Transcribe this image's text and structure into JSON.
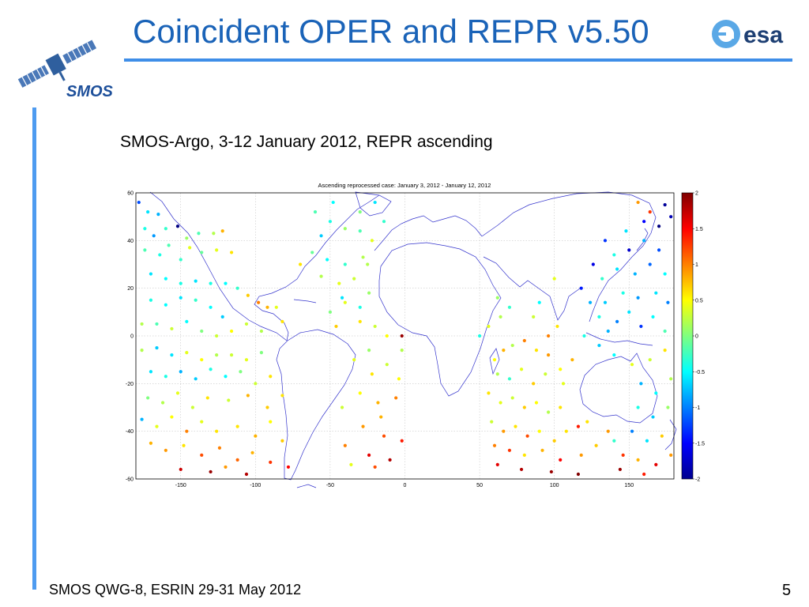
{
  "slide": {
    "title": "Coincident OPER and REPR v5.50",
    "subtitle": "SMOS-Argo, 3-12 January 2012, REPR ascending",
    "footer": "SMOS QWG-8, ESRIN 29-31 May 2012",
    "page_number": "5"
  },
  "logos": {
    "left": {
      "text": "SMOS",
      "icon": "satellite-icon"
    },
    "right": {
      "text": "esa",
      "icon": "esa-logo-icon"
    }
  },
  "colors": {
    "title": "#1a63b8",
    "rule": "#3f8ee8",
    "coastline": "#3333cc",
    "grid": "#bbbbbb"
  },
  "chart_data": {
    "type": "scatter",
    "title": "Ascending reprocessed case: January 3, 2012 - January 12, 2012",
    "xlabel": "",
    "ylabel": "",
    "xlim": [
      -180,
      180
    ],
    "ylim": [
      -60,
      60
    ],
    "x_ticks": [
      -150,
      -100,
      -50,
      0,
      50,
      100,
      150
    ],
    "y_ticks": [
      60,
      40,
      20,
      0,
      -20,
      -40,
      -60
    ],
    "grid": true,
    "colorbar": {
      "range": [
        -2,
        2
      ],
      "ticks": [
        2,
        1.5,
        1,
        0.5,
        0,
        -0.5,
        -1,
        -1.5,
        -2
      ],
      "colormap": "jet"
    },
    "points": [
      [
        -178,
        56,
        -1.2
      ],
      [
        -172,
        52,
        -0.6
      ],
      [
        -165,
        51,
        -0.8
      ],
      [
        -160,
        45,
        -0.3
      ],
      [
        -152,
        46,
        -2.0
      ],
      [
        -146,
        41,
        0.1
      ],
      [
        -138,
        43,
        -0.2
      ],
      [
        -128,
        43,
        0.2
      ],
      [
        -122,
        44,
        0.8
      ],
      [
        -116,
        35,
        0.6
      ],
      [
        -126,
        36,
        0.4
      ],
      [
        -136,
        35,
        -0.1
      ],
      [
        -150,
        32,
        -0.3
      ],
      [
        -164,
        34,
        -0.4
      ],
      [
        -174,
        36,
        -0.2
      ],
      [
        -170,
        26,
        -0.6
      ],
      [
        -160,
        24,
        -0.5
      ],
      [
        -150,
        22,
        -0.4
      ],
      [
        -140,
        23,
        -0.6
      ],
      [
        -130,
        22,
        -0.4
      ],
      [
        -120,
        22,
        -0.5
      ],
      [
        -112,
        20,
        -0.3
      ],
      [
        -105,
        17,
        0.7
      ],
      [
        -98,
        14,
        1.0
      ],
      [
        -92,
        12,
        0.8
      ],
      [
        -82,
        6,
        0.6
      ],
      [
        -86,
        12,
        0.4
      ],
      [
        -170,
        15,
        -0.4
      ],
      [
        -160,
        13,
        -0.5
      ],
      [
        -150,
        16,
        -0.6
      ],
      [
        -140,
        15,
        -0.3
      ],
      [
        -130,
        12,
        -0.5
      ],
      [
        -122,
        8,
        -0.7
      ],
      [
        -176,
        5,
        0.2
      ],
      [
        -166,
        5,
        -0.2
      ],
      [
        -156,
        3,
        0.3
      ],
      [
        -146,
        6,
        -0.5
      ],
      [
        -136,
        2,
        0.0
      ],
      [
        -126,
        0,
        0.3
      ],
      [
        -116,
        2,
        0.5
      ],
      [
        -106,
        5,
        0.3
      ],
      [
        -96,
        2,
        0.2
      ],
      [
        -176,
        -6,
        0.2
      ],
      [
        -166,
        -5,
        -0.7
      ],
      [
        -156,
        -8,
        -0.6
      ],
      [
        -146,
        -7,
        0.4
      ],
      [
        -136,
        -10,
        0.5
      ],
      [
        -126,
        -8,
        0.2
      ],
      [
        -116,
        -8,
        0.3
      ],
      [
        -106,
        -10,
        0.4
      ],
      [
        -96,
        -7,
        0.0
      ],
      [
        -170,
        -15,
        -0.6
      ],
      [
        -160,
        -17,
        -0.4
      ],
      [
        -150,
        -15,
        -0.8
      ],
      [
        -140,
        -18,
        -0.7
      ],
      [
        -130,
        -14,
        -0.4
      ],
      [
        -120,
        -17,
        -0.5
      ],
      [
        -110,
        -15,
        0.0
      ],
      [
        -100,
        -20,
        0.3
      ],
      [
        -90,
        -17,
        0.6
      ],
      [
        -172,
        -26,
        0.0
      ],
      [
        -162,
        -28,
        0.2
      ],
      [
        -152,
        -24,
        0.4
      ],
      [
        -142,
        -30,
        0.3
      ],
      [
        -132,
        -26,
        0.6
      ],
      [
        -118,
        -27,
        0.3
      ],
      [
        -105,
        -25,
        0.8
      ],
      [
        -92,
        -30,
        0.7
      ],
      [
        -82,
        -25,
        0.6
      ],
      [
        -176,
        -35,
        -0.8
      ],
      [
        -166,
        -38,
        0.4
      ],
      [
        -156,
        -34,
        0.5
      ],
      [
        -146,
        -40,
        1.0
      ],
      [
        -136,
        -36,
        0.4
      ],
      [
        -126,
        -40,
        0.6
      ],
      [
        -112,
        -38,
        0.6
      ],
      [
        -100,
        -42,
        0.8
      ],
      [
        -90,
        -36,
        0.5
      ],
      [
        -82,
        -44,
        0.7
      ],
      [
        -170,
        -45,
        0.8
      ],
      [
        -160,
        -48,
        0.9
      ],
      [
        -148,
        -46,
        0.6
      ],
      [
        -136,
        -50,
        1.2
      ],
      [
        -124,
        -47,
        1.0
      ],
      [
        -112,
        -52,
        1.1
      ],
      [
        -102,
        -49,
        0.8
      ],
      [
        -90,
        -53,
        1.3
      ],
      [
        -78,
        -55,
        1.5
      ],
      [
        -150,
        -56,
        1.7
      ],
      [
        -130,
        -57,
        1.9
      ],
      [
        -106,
        -58,
        1.8
      ],
      [
        -120,
        -55,
        0.9
      ],
      [
        -174,
        45,
        -0.4
      ],
      [
        -168,
        42,
        -0.9
      ],
      [
        -158,
        38,
        -0.2
      ],
      [
        -144,
        37,
        0.4
      ],
      [
        -60,
        52,
        -0.2
      ],
      [
        -50,
        48,
        -0.4
      ],
      [
        -40,
        45,
        0.1
      ],
      [
        -30,
        44,
        -0.2
      ],
      [
        -22,
        40,
        0.4
      ],
      [
        -28,
        33,
        0.2
      ],
      [
        -40,
        30,
        -0.3
      ],
      [
        -52,
        32,
        -0.5
      ],
      [
        -62,
        35,
        -0.1
      ],
      [
        -70,
        30,
        0.6
      ],
      [
        -56,
        25,
        0.2
      ],
      [
        -44,
        22,
        0.4
      ],
      [
        -34,
        24,
        0.3
      ],
      [
        -24,
        18,
        0.1
      ],
      [
        -40,
        14,
        0.4
      ],
      [
        -50,
        10,
        0.0
      ],
      [
        -30,
        6,
        0.6
      ],
      [
        -20,
        4,
        0.3
      ],
      [
        -12,
        0,
        0.5
      ],
      [
        -24,
        -6,
        0.1
      ],
      [
        -34,
        -10,
        0.4
      ],
      [
        -22,
        -16,
        0.6
      ],
      [
        -12,
        -12,
        0.3
      ],
      [
        -2,
        -6,
        0.2
      ],
      [
        -30,
        -24,
        0.5
      ],
      [
        -18,
        -28,
        0.8
      ],
      [
        -6,
        -26,
        1.0
      ],
      [
        -42,
        -30,
        0.3
      ],
      [
        -28,
        -38,
        0.9
      ],
      [
        -14,
        -42,
        1.2
      ],
      [
        -2,
        -44,
        1.4
      ],
      [
        -40,
        -46,
        1.0
      ],
      [
        -24,
        -50,
        1.6
      ],
      [
        -10,
        -52,
        1.8
      ],
      [
        -36,
        -54,
        0.4
      ],
      [
        -20,
        -55,
        1.2
      ],
      [
        -48,
        56,
        -0.5
      ],
      [
        -30,
        52,
        0.0
      ],
      [
        -20,
        56,
        -0.6
      ],
      [
        -14,
        48,
        -0.3
      ],
      [
        -42,
        16,
        -0.6
      ],
      [
        -30,
        12,
        -0.4
      ],
      [
        -2,
        0,
        1.9
      ],
      [
        -56,
        42,
        -0.7
      ],
      [
        -25,
        30,
        0.2
      ],
      [
        -46,
        4,
        0.7
      ],
      [
        -16,
        -34,
        0.8
      ],
      [
        -4,
        -18,
        0.5
      ],
      [
        60,
        -10,
        0.5
      ],
      [
        66,
        -6,
        0.8
      ],
      [
        72,
        -4,
        0.2
      ],
      [
        80,
        -2,
        1.0
      ],
      [
        88,
        -6,
        0.6
      ],
      [
        96,
        -8,
        0.9
      ],
      [
        62,
        -16,
        0.2
      ],
      [
        70,
        -18,
        -0.3
      ],
      [
        78,
        -14,
        0.4
      ],
      [
        86,
        -20,
        0.7
      ],
      [
        94,
        -16,
        0.3
      ],
      [
        104,
        -14,
        0.5
      ],
      [
        56,
        -24,
        0.6
      ],
      [
        64,
        -28,
        0.4
      ],
      [
        72,
        -26,
        0.3
      ],
      [
        80,
        -30,
        0.7
      ],
      [
        88,
        -28,
        0.5
      ],
      [
        96,
        -32,
        0.2
      ],
      [
        104,
        -30,
        0.6
      ],
      [
        58,
        -36,
        0.3
      ],
      [
        66,
        -40,
        0.9
      ],
      [
        74,
        -38,
        0.6
      ],
      [
        82,
        -42,
        1.2
      ],
      [
        90,
        -40,
        0.5
      ],
      [
        100,
        -44,
        0.7
      ],
      [
        108,
        -40,
        0.6
      ],
      [
        116,
        -38,
        1.4
      ],
      [
        60,
        -46,
        1.0
      ],
      [
        70,
        -48,
        1.3
      ],
      [
        80,
        -50,
        0.6
      ],
      [
        92,
        -48,
        0.8
      ],
      [
        104,
        -52,
        1.5
      ],
      [
        118,
        -50,
        0.9
      ],
      [
        128,
        -46,
        0.7
      ],
      [
        62,
        -54,
        1.6
      ],
      [
        78,
        -56,
        1.8
      ],
      [
        98,
        -57,
        1.9
      ],
      [
        116,
        -58,
        2.0
      ],
      [
        50,
        0,
        -0.4
      ],
      [
        56,
        4,
        0.4
      ],
      [
        64,
        8,
        0.2
      ],
      [
        70,
        12,
        -0.3
      ],
      [
        62,
        16,
        0.1
      ],
      [
        86,
        8,
        0.3
      ],
      [
        90,
        14,
        -0.5
      ],
      [
        96,
        0,
        1.0
      ],
      [
        102,
        4,
        0.6
      ],
      [
        130,
        8,
        -0.4
      ],
      [
        136,
        2,
        -0.8
      ],
      [
        142,
        6,
        -1.0
      ],
      [
        150,
        10,
        -0.6
      ],
      [
        158,
        4,
        -1.3
      ],
      [
        166,
        8,
        -0.5
      ],
      [
        174,
        2,
        -0.2
      ],
      [
        134,
        14,
        -0.7
      ],
      [
        146,
        18,
        -0.4
      ],
      [
        156,
        16,
        -0.9
      ],
      [
        168,
        18,
        -0.6
      ],
      [
        176,
        14,
        -1.0
      ],
      [
        132,
        24,
        -0.3
      ],
      [
        142,
        28,
        -0.6
      ],
      [
        154,
        26,
        -0.8
      ],
      [
        164,
        30,
        -1.1
      ],
      [
        174,
        26,
        -0.5
      ],
      [
        140,
        34,
        -0.4
      ],
      [
        150,
        36,
        -1.7
      ],
      [
        160,
        40,
        -0.8
      ],
      [
        170,
        36,
        -1.2
      ],
      [
        148,
        44,
        -0.6
      ],
      [
        160,
        48,
        -1.5
      ],
      [
        170,
        46,
        -2.0
      ],
      [
        178,
        50,
        -1.8
      ],
      [
        164,
        52,
        1.3
      ],
      [
        174,
        55,
        -1.9
      ],
      [
        156,
        56,
        0.9
      ],
      [
        130,
        -4,
        -0.7
      ],
      [
        140,
        -8,
        -0.5
      ],
      [
        152,
        -12,
        0.4
      ],
      [
        164,
        -10,
        0.3
      ],
      [
        174,
        -6,
        0.6
      ],
      [
        158,
        -20,
        -0.8
      ],
      [
        168,
        -24,
        -0.5
      ],
      [
        178,
        -18,
        0.2
      ],
      [
        156,
        -30,
        -0.4
      ],
      [
        166,
        -34,
        -0.7
      ],
      [
        176,
        -30,
        0.1
      ],
      [
        152,
        -40,
        -1.0
      ],
      [
        162,
        -44,
        -0.6
      ],
      [
        172,
        -42,
        0.7
      ],
      [
        146,
        -50,
        1.3
      ],
      [
        156,
        -52,
        0.8
      ],
      [
        168,
        -54,
        1.6
      ],
      [
        178,
        -50,
        0.9
      ],
      [
        144,
        -56,
        1.9
      ],
      [
        160,
        -58,
        1.4
      ],
      [
        140,
        -44,
        -0.3
      ],
      [
        124,
        14,
        -0.8
      ],
      [
        118,
        20,
        -1.4
      ],
      [
        126,
        30,
        -1.6
      ],
      [
        120,
        0,
        -0.4
      ],
      [
        112,
        -10,
        0.8
      ],
      [
        106,
        -20,
        0.4
      ],
      [
        122,
        -36,
        0.6
      ],
      [
        136,
        -40,
        0.9
      ],
      [
        100,
        24,
        0.4
      ],
      [
        134,
        40,
        -1.3
      ]
    ]
  }
}
